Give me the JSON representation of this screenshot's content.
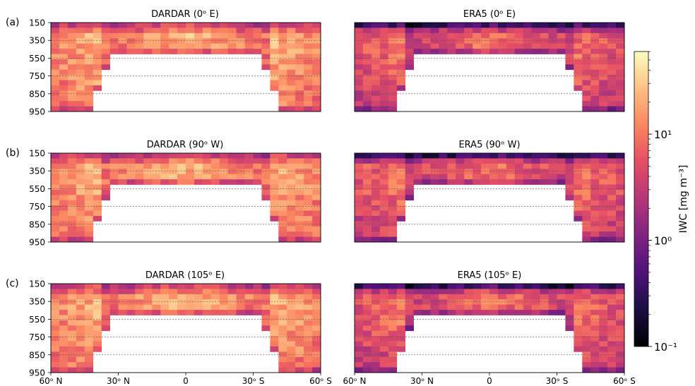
{
  "chart_data": {
    "type": "heatmap",
    "rows": [
      {
        "label": "(a)",
        "panels": [
          {
            "title": "DARDAR (0ᵒ E)",
            "source": "DARDAR"
          },
          {
            "title": "ERA5 (0ᵒ E)",
            "source": "ERA5"
          }
        ]
      },
      {
        "label": "(b)",
        "panels": [
          {
            "title": "DARDAR (90ᵒ W)",
            "source": "DARDAR"
          },
          {
            "title": "ERA5 (90ᵒ W)",
            "source": "ERA5"
          }
        ]
      },
      {
        "label": "(c)",
        "panels": [
          {
            "title": "DARDAR (105ᵒ E)",
            "source": "DARDAR"
          },
          {
            "title": "ERA5 (105ᵒ E)",
            "source": "ERA5"
          }
        ]
      }
    ],
    "yticks": [
      "150",
      "350",
      "550",
      "750",
      "850",
      "950"
    ],
    "xticks": [
      "60ᵒ N",
      "30ᵒ N",
      "0",
      "30ᵒ S",
      "60ᵒ S"
    ],
    "xlim": [
      -60,
      60
    ],
    "ylim": [
      950,
      150
    ],
    "colorbar": {
      "label": "IWC [mg m⁻³]",
      "scale": "log",
      "range": [
        0.1,
        60
      ],
      "ticks": [
        {
          "value": 0.1,
          "label": "10⁻¹"
        },
        {
          "value": 1,
          "label": "10⁰"
        },
        {
          "value": 10,
          "label": "10¹"
        }
      ],
      "colormap": "magma"
    }
  }
}
